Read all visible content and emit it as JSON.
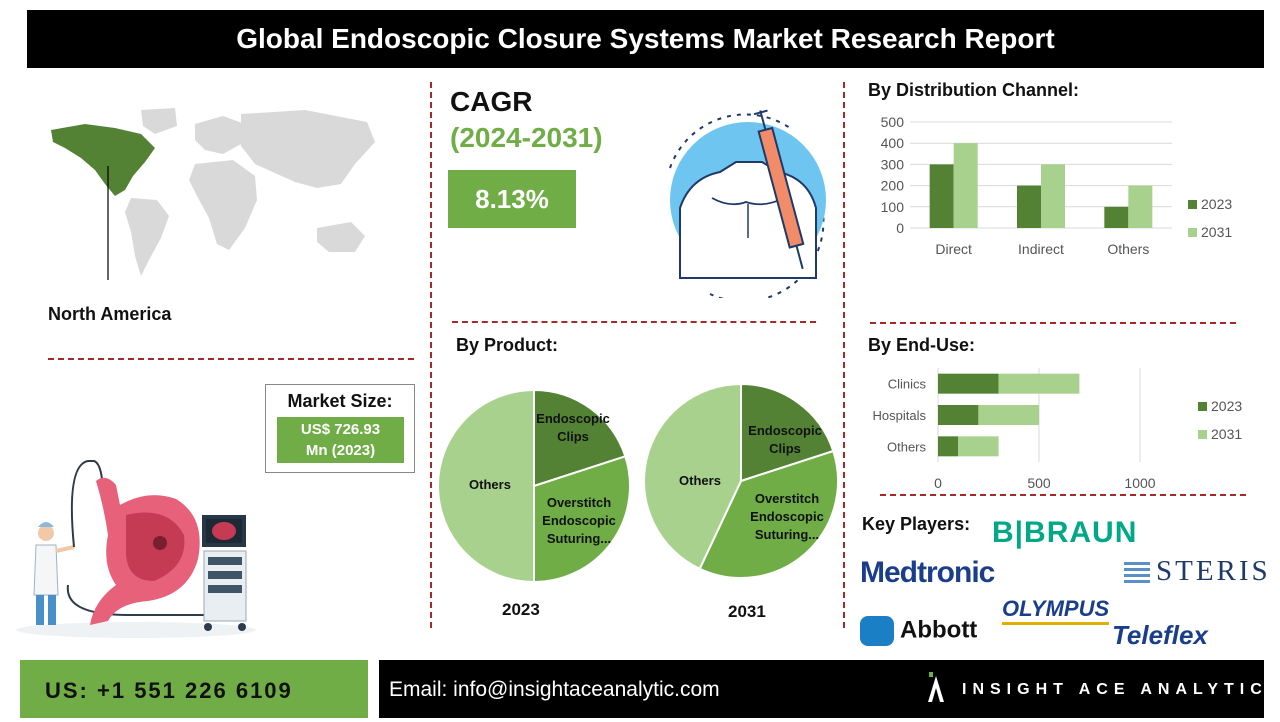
{
  "title": "Global Endoscopic Closure Systems Market Research Report",
  "region": {
    "label": "North America"
  },
  "cagr": {
    "label": "CAGR",
    "years": "(2024-2031)",
    "value": "8.13%"
  },
  "market_size": {
    "title": "Market Size:",
    "value_line1": "US$ 726.93",
    "value_line2": "Mn (2023)"
  },
  "sections": {
    "distribution": "By Distribution Channel:",
    "product": "By Product:",
    "end_use": "By  End-Use:",
    "key_players": "Key Players:"
  },
  "colors": {
    "dark_green": "#548235",
    "green": "#70ad47",
    "light_green": "#a9d18e",
    "divider": "#a52a2a"
  },
  "chart_data": [
    {
      "type": "bar",
      "categories": [
        "Direct",
        "Indirect",
        "Others"
      ],
      "series": [
        {
          "name": "2023",
          "values": [
            300,
            200,
            100
          ]
        },
        {
          "name": "2031",
          "values": [
            400,
            300,
            200
          ]
        }
      ],
      "ylim": [
        0,
        500
      ],
      "yticks": [
        "0",
        "100",
        "200",
        "300",
        "400",
        "500"
      ],
      "legend": "right",
      "grid": true
    },
    {
      "type": "bar",
      "orientation": "horizontal",
      "stacked": true,
      "categories": [
        "Clinics",
        "Hospitals",
        "Others"
      ],
      "series": [
        {
          "name": "2023",
          "values": [
            300,
            200,
            100
          ]
        },
        {
          "name": "2031",
          "values": [
            400,
            300,
            200
          ]
        }
      ],
      "xlim": [
        0,
        1000
      ],
      "xticks": [
        "0",
        "500",
        "1000"
      ],
      "legend": "right",
      "grid": true
    },
    {
      "type": "pie",
      "year": "2023",
      "labels": [
        "Endoscopic Clips",
        "Overstitch Endoscopic Suturing...",
        "Others"
      ],
      "values": [
        20,
        30,
        50
      ]
    },
    {
      "type": "pie",
      "year": "2031",
      "labels": [
        "Endoscopic Clips",
        "Overstitch Endoscopic Suturing...",
        "Others"
      ],
      "values": [
        20,
        37,
        43
      ]
    }
  ],
  "key_players": [
    "B|BRAUN",
    "Medtronic",
    "STERIS",
    "OLYMPUS",
    "Abbott",
    "Teleflex"
  ],
  "footer": {
    "phone": "US: +1 551 226 6109",
    "email": "Email: info@insightaceanalytic.com",
    "brand": "INSIGHT ACE ANALYTIC"
  }
}
